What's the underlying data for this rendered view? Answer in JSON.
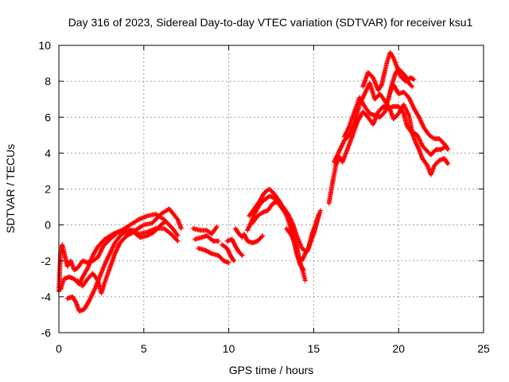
{
  "chart_data": {
    "type": "scatter",
    "title": "Day 316 of 2023, Sidereal Day-to-day VTEC variation (SDTVAR) for receiver ksu1",
    "xlabel": "GPS time / hours",
    "ylabel": "SDTVAR / TECUs",
    "xlim": [
      0,
      25
    ],
    "ylim": [
      -6,
      10
    ],
    "xticks": [
      0,
      5,
      10,
      15,
      20,
      25
    ],
    "yticks": [
      -6,
      -4,
      -2,
      0,
      2,
      4,
      6,
      8,
      10
    ],
    "grid": true,
    "series": [
      {
        "name": "SDTVAR",
        "color": "#ff0000",
        "marker": "plus",
        "tracks": [
          [
            [
              0.0,
              -3.7
            ],
            [
              0.1,
              -1.6
            ],
            [
              0.2,
              -1.1
            ],
            [
              0.3,
              -1.5
            ],
            [
              0.5,
              -2.3
            ],
            [
              0.7,
              -2.0
            ],
            [
              0.9,
              -2.5
            ],
            [
              1.1,
              -2.4
            ],
            [
              1.4,
              -2.0
            ],
            [
              1.7,
              -2.1
            ],
            [
              2.0,
              -2.0
            ],
            [
              2.3,
              -1.8
            ],
            [
              2.6,
              -1.2
            ],
            [
              3.0,
              -0.8
            ],
            [
              3.5,
              -0.4
            ],
            [
              4.0,
              -0.3
            ],
            [
              4.5,
              -0.3
            ],
            [
              5.0,
              0.0
            ],
            [
              5.5,
              0.1
            ],
            [
              6.0,
              0.6
            ],
            [
              6.5,
              0.9
            ],
            [
              7.0,
              0.3
            ],
            [
              7.2,
              -0.2
            ]
          ],
          [
            [
              0.1,
              -3.6
            ],
            [
              0.3,
              -3.0
            ],
            [
              0.6,
              -2.9
            ],
            [
              0.9,
              -3.0
            ],
            [
              1.2,
              -3.3
            ],
            [
              1.4,
              -2.9
            ],
            [
              1.7,
              -2.4
            ],
            [
              2.0,
              -1.7
            ],
            [
              2.3,
              -1.2
            ],
            [
              2.7,
              -0.8
            ],
            [
              3.2,
              -0.5
            ],
            [
              3.7,
              -0.3
            ],
            [
              4.2,
              0.0
            ],
            [
              4.7,
              0.3
            ],
            [
              5.2,
              0.5
            ],
            [
              5.7,
              0.6
            ],
            [
              6.2,
              0.3
            ],
            [
              6.7,
              -0.2
            ],
            [
              7.0,
              -0.6
            ]
          ],
          [
            [
              0.5,
              -4.1
            ],
            [
              0.8,
              -4.0
            ],
            [
              1.0,
              -4.3
            ],
            [
              1.2,
              -4.8
            ],
            [
              1.5,
              -4.7
            ],
            [
              1.8,
              -4.2
            ],
            [
              2.1,
              -3.6
            ],
            [
              2.4,
              -2.9
            ],
            [
              2.7,
              -2.2
            ],
            [
              3.0,
              -1.6
            ],
            [
              3.3,
              -1.0
            ],
            [
              3.7,
              -0.5
            ],
            [
              4.2,
              -0.3
            ],
            [
              4.7,
              -0.5
            ],
            [
              5.2,
              -0.4
            ],
            [
              5.7,
              -0.2
            ],
            [
              6.2,
              -0.2
            ],
            [
              6.6,
              -0.5
            ],
            [
              7.0,
              -0.9
            ]
          ],
          [
            [
              1.1,
              -3.1
            ],
            [
              1.4,
              -3.4
            ],
            [
              1.7,
              -3.0
            ],
            [
              2.0,
              -2.7
            ],
            [
              2.3,
              -3.1
            ],
            [
              2.5,
              -3.8
            ],
            [
              2.7,
              -3.2
            ],
            [
              3.0,
              -2.4
            ],
            [
              3.3,
              -1.6
            ],
            [
              3.6,
              -1.0
            ],
            [
              4.0,
              -0.6
            ],
            [
              4.4,
              -0.4
            ],
            [
              4.8,
              -0.7
            ],
            [
              5.2,
              -0.6
            ],
            [
              5.6,
              -0.4
            ],
            [
              6.0,
              0.0
            ],
            [
              6.3,
              0.2
            ]
          ],
          [
            [
              7.9,
              -0.2
            ],
            [
              8.3,
              -0.3
            ],
            [
              8.7,
              -0.3
            ],
            [
              9.0,
              -0.5
            ],
            [
              9.3,
              -0.1
            ]
          ],
          [
            [
              8.0,
              -0.8
            ],
            [
              8.4,
              -0.7
            ],
            [
              8.7,
              -0.6
            ],
            [
              9.1,
              -0.9
            ],
            [
              9.4,
              -0.9
            ]
          ],
          [
            [
              8.2,
              -1.3
            ],
            [
              8.6,
              -1.4
            ],
            [
              9.0,
              -1.6
            ],
            [
              9.4,
              -1.7
            ],
            [
              9.7,
              -2.0
            ],
            [
              10.0,
              -2.1
            ]
          ],
          [
            [
              9.6,
              -1.1
            ],
            [
              9.9,
              -1.3
            ],
            [
              10.1,
              -1.7
            ],
            [
              10.3,
              -2.0
            ]
          ],
          [
            [
              9.9,
              -0.9
            ],
            [
              10.2,
              -0.8
            ],
            [
              10.4,
              -1.2
            ],
            [
              10.6,
              -1.5
            ],
            [
              10.8,
              -1.7
            ]
          ],
          [
            [
              10.4,
              -0.2
            ],
            [
              10.6,
              -0.5
            ],
            [
              10.8,
              -0.7
            ]
          ],
          [
            [
              10.9,
              -0.5
            ],
            [
              11.1,
              -0.9
            ],
            [
              11.4,
              -1.0
            ],
            [
              11.7,
              -0.9
            ],
            [
              12.0,
              -0.6
            ]
          ],
          [
            [
              11.1,
              -0.3
            ],
            [
              11.3,
              0.1
            ],
            [
              11.5,
              0.6
            ],
            [
              11.8,
              1.1
            ],
            [
              12.1,
              1.4
            ],
            [
              12.4,
              1.6
            ],
            [
              12.7,
              1.5
            ],
            [
              13.0,
              1.1
            ],
            [
              13.3,
              0.7
            ],
            [
              13.6,
              0.3
            ],
            [
              13.8,
              -0.4
            ],
            [
              14.0,
              -1.2
            ],
            [
              14.2,
              -2.1
            ],
            [
              14.4,
              -2.7
            ],
            [
              14.5,
              -3.1
            ]
          ],
          [
            [
              11.2,
              0.5
            ],
            [
              11.5,
              0.9
            ],
            [
              11.8,
              1.3
            ],
            [
              12.1,
              1.8
            ],
            [
              12.4,
              2.0
            ],
            [
              12.7,
              1.7
            ],
            [
              13.0,
              1.3
            ],
            [
              13.3,
              0.8
            ],
            [
              13.6,
              0.0
            ],
            [
              13.8,
              -0.8
            ],
            [
              14.0,
              -1.6
            ],
            [
              14.2,
              -2.2
            ],
            [
              14.4,
              -2.5
            ]
          ],
          [
            [
              11.4,
              0.1
            ],
            [
              11.7,
              0.5
            ],
            [
              12.0,
              0.7
            ],
            [
              12.3,
              0.8
            ],
            [
              12.6,
              1.2
            ],
            [
              12.9,
              1.3
            ],
            [
              13.2,
              1.0
            ],
            [
              13.5,
              0.6
            ],
            [
              13.8,
              0.0
            ],
            [
              14.0,
              -0.6
            ],
            [
              14.3,
              -1.3
            ],
            [
              14.6,
              -1.5
            ],
            [
              14.8,
              -1.0
            ],
            [
              15.0,
              -0.5
            ],
            [
              15.2,
              0.2
            ]
          ],
          [
            [
              13.4,
              -0.2
            ],
            [
              13.7,
              -0.6
            ],
            [
              13.9,
              -1.0
            ],
            [
              14.1,
              -1.8
            ],
            [
              14.3,
              -2.0
            ],
            [
              14.5,
              -1.6
            ],
            [
              14.7,
              -1.3
            ],
            [
              14.9,
              -0.5
            ],
            [
              15.1,
              0.0
            ],
            [
              15.3,
              0.6
            ]
          ],
          [
            [
              15.0,
              -0.4
            ],
            [
              15.2,
              0.2
            ],
            [
              15.4,
              0.8
            ]
          ],
          [
            [
              15.9,
              1.2
            ],
            [
              16.1,
              2.3
            ],
            [
              16.3,
              3.3
            ],
            [
              16.5,
              3.8
            ],
            [
              16.7,
              3.5
            ],
            [
              16.9,
              4.0
            ],
            [
              17.1,
              4.5
            ],
            [
              17.3,
              5.0
            ],
            [
              17.6,
              5.8
            ],
            [
              17.9,
              6.3
            ],
            [
              18.2,
              6.0
            ],
            [
              18.5,
              5.6
            ],
            [
              18.8,
              6.3
            ],
            [
              19.1,
              6.6
            ],
            [
              19.4,
              6.5
            ],
            [
              19.7,
              6.6
            ],
            [
              20.0,
              6.6
            ],
            [
              20.3,
              6.2
            ],
            [
              20.5,
              5.5
            ],
            [
              20.8,
              5.1
            ],
            [
              21.0,
              4.6
            ],
            [
              21.2,
              4.2
            ],
            [
              21.4,
              3.7
            ],
            [
              21.7,
              3.3
            ],
            [
              21.9,
              2.8
            ],
            [
              22.1,
              3.3
            ],
            [
              22.4,
              3.6
            ],
            [
              22.7,
              3.7
            ],
            [
              22.9,
              3.4
            ]
          ],
          [
            [
              16.2,
              3.5
            ],
            [
              16.5,
              4.1
            ],
            [
              16.8,
              4.7
            ],
            [
              17.1,
              5.0
            ],
            [
              17.4,
              5.7
            ],
            [
              17.7,
              6.7
            ],
            [
              18.0,
              7.3
            ],
            [
              18.3,
              7.9
            ],
            [
              18.6,
              7.0
            ],
            [
              18.9,
              7.3
            ],
            [
              19.2,
              6.9
            ],
            [
              19.5,
              6.4
            ],
            [
              19.7,
              5.9
            ],
            [
              20.0,
              6.2
            ],
            [
              20.3,
              6.7
            ],
            [
              20.6,
              6.1
            ],
            [
              20.8,
              5.2
            ],
            [
              21.1,
              5.0
            ],
            [
              21.4,
              4.4
            ],
            [
              21.7,
              4.1
            ],
            [
              21.9,
              3.9
            ],
            [
              22.2,
              4.2
            ],
            [
              22.5,
              4.2
            ],
            [
              22.8,
              4.4
            ]
          ],
          [
            [
              16.8,
              4.9
            ],
            [
              17.1,
              5.5
            ],
            [
              17.4,
              6.3
            ],
            [
              17.7,
              7.1
            ],
            [
              18.0,
              6.6
            ],
            [
              18.3,
              6.2
            ],
            [
              18.6,
              6.1
            ],
            [
              18.9,
              6.0
            ],
            [
              19.2,
              6.3
            ],
            [
              19.5,
              7.4
            ],
            [
              19.7,
              7.8
            ],
            [
              20.0,
              7.3
            ],
            [
              20.3,
              7.4
            ],
            [
              20.6,
              7.1
            ],
            [
              20.9,
              6.5
            ],
            [
              21.2,
              6.0
            ],
            [
              21.5,
              5.4
            ],
            [
              21.8,
              5.0
            ],
            [
              22.1,
              4.8
            ],
            [
              22.4,
              4.8
            ],
            [
              22.7,
              4.5
            ],
            [
              22.9,
              4.2
            ]
          ],
          [
            [
              17.9,
              7.7
            ],
            [
              18.2,
              8.5
            ],
            [
              18.5,
              8.2
            ],
            [
              18.8,
              7.5
            ],
            [
              19.0,
              7.8
            ],
            [
              19.3,
              9.0
            ],
            [
              19.5,
              9.6
            ],
            [
              19.7,
              9.3
            ],
            [
              19.9,
              8.8
            ],
            [
              20.1,
              8.3
            ],
            [
              20.4,
              8.0
            ],
            [
              20.7,
              8.2
            ],
            [
              20.9,
              8.1
            ]
          ],
          [
            [
              19.4,
              7.0
            ],
            [
              19.6,
              7.8
            ],
            [
              19.8,
              8.4
            ],
            [
              20.0,
              8.7
            ],
            [
              20.2,
              8.5
            ],
            [
              20.4,
              8.3
            ],
            [
              20.6,
              7.9
            ],
            [
              20.8,
              7.7
            ]
          ]
        ]
      }
    ]
  }
}
